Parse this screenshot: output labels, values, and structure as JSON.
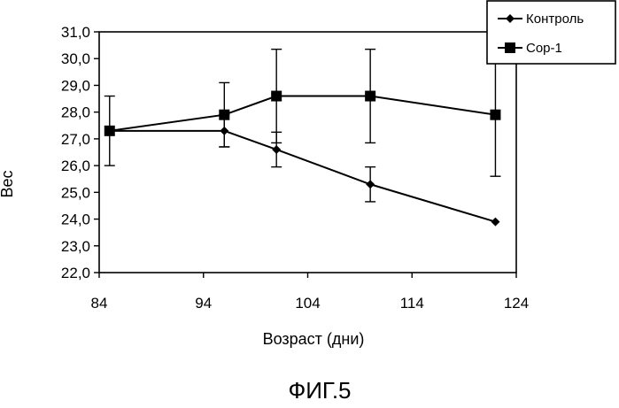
{
  "chart_data": {
    "type": "line",
    "title": "",
    "xlabel": "Возраст (дни)",
    "ylabel": "Вес",
    "xlim": [
      84,
      124
    ],
    "ylim": [
      22.0,
      31.0
    ],
    "x_ticks": [
      "84",
      "94",
      "104",
      "114",
      "124"
    ],
    "y_ticks": [
      "22,0",
      "23,0",
      "24,0",
      "25,0",
      "26,0",
      "27,0",
      "28,0",
      "29,0",
      "30,0",
      "31,0"
    ],
    "grid": false,
    "legend_position": "top-right",
    "series": [
      {
        "name": "Контроль",
        "marker": "diamond",
        "x": [
          85,
          96,
          101,
          110,
          122
        ],
        "y": [
          27.3,
          27.3,
          26.6,
          25.3,
          23.9
        ],
        "error": [
          null,
          0.6,
          0.65,
          0.65,
          null
        ]
      },
      {
        "name": "Cop-1",
        "marker": "square",
        "x": [
          85,
          96,
          101,
          110,
          122
        ],
        "y": [
          27.3,
          27.9,
          28.6,
          28.6,
          27.9
        ],
        "error": [
          1.3,
          1.2,
          1.75,
          1.75,
          2.3
        ]
      }
    ]
  },
  "caption": "ФИГ.5"
}
